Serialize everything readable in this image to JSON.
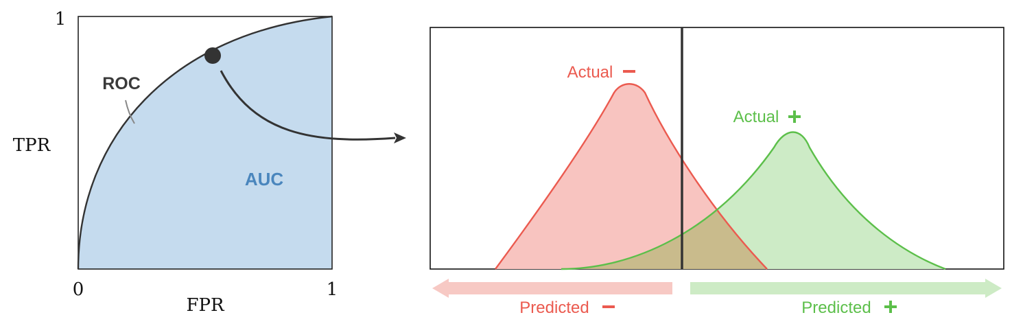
{
  "roc": {
    "x_label": "FPR",
    "y_label": "TPR",
    "x_min": "0",
    "x_max": "1",
    "y_max": "1",
    "curve_label": "ROC",
    "area_label": "AUC",
    "area_color": "#c5dbee",
    "curve_color": "#333333",
    "area_label_color": "#4a86bd"
  },
  "distributions": {
    "negative_label": "Actual",
    "positive_label": "Actual",
    "negative_color": "#eb5a4f",
    "negative_fill": "#f8c4c0",
    "positive_color": "#5cbf4a",
    "positive_fill": "#cdebc6",
    "overlap_fill": "#c9bb8c"
  },
  "predictions": {
    "negative_label": "Predicted",
    "positive_label": "Predicted",
    "negative_arrow_color": "#f7c9c4",
    "positive_arrow_color": "#cdebc5"
  },
  "icons": {
    "minus": "minus-icon",
    "plus": "plus-icon",
    "threshold_marker": "threshold-point"
  }
}
